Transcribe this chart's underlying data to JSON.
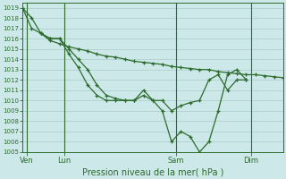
{
  "title": "Pression niveau de la mer( hPa )",
  "bg_color": "#cce8e8",
  "grid_color": "#aacccc",
  "line_color": "#2d6b2d",
  "ylim": [
    1005,
    1019.5
  ],
  "ytick_min": 1005,
  "ytick_max": 1019,
  "xlim": [
    0,
    168
  ],
  "xtick_labels": [
    "Ven",
    "Lun",
    "Sam",
    "Dim"
  ],
  "xtick_positions": [
    3,
    27,
    99,
    147
  ],
  "vline_positions": [
    3,
    27,
    99,
    147
  ],
  "series": [
    {
      "x": [
        0,
        6,
        12,
        18,
        24,
        30,
        36,
        42,
        48,
        54,
        60,
        66,
        72,
        78,
        84,
        90,
        96,
        102,
        108,
        114,
        120,
        126,
        132,
        138,
        144,
        150,
        156,
        162,
        168
      ],
      "y": [
        1019,
        1018,
        1016.5,
        1015.8,
        1015.5,
        1015.2,
        1015.0,
        1014.8,
        1014.5,
        1014.3,
        1014.2,
        1014.0,
        1013.8,
        1013.7,
        1013.6,
        1013.5,
        1013.3,
        1013.2,
        1013.1,
        1013.0,
        1013.0,
        1012.8,
        1012.7,
        1012.6,
        1012.5,
        1012.5,
        1012.4,
        1012.3,
        1012.2
      ]
    },
    {
      "x": [
        0,
        6,
        12,
        18,
        24,
        30,
        36,
        42,
        48,
        54,
        60,
        66,
        72,
        78,
        84,
        90,
        96,
        102,
        108,
        114,
        120,
        126,
        132,
        138,
        144
      ],
      "y": [
        1019,
        1017,
        1016.5,
        1016,
        1016,
        1015,
        1014,
        1013,
        1011.5,
        1010.5,
        1010.2,
        1010,
        1010,
        1011,
        1010,
        1010,
        1009,
        1009.5,
        1009.8,
        1010,
        1012,
        1012.5,
        1011,
        1012,
        1012
      ]
    },
    {
      "x": [
        12,
        18,
        24,
        30,
        36,
        42,
        48,
        54,
        60,
        66,
        72,
        78,
        84,
        90,
        96,
        102,
        108,
        114,
        120,
        126,
        132,
        138,
        144
      ],
      "y": [
        1016.5,
        1016,
        1016,
        1014.5,
        1013.2,
        1011.5,
        1010.5,
        1010,
        1010,
        1010,
        1010,
        1010.5,
        1010,
        1009,
        1006,
        1007,
        1006.5,
        1005,
        1006,
        1009,
        1012.5,
        1013,
        1012
      ]
    }
  ]
}
